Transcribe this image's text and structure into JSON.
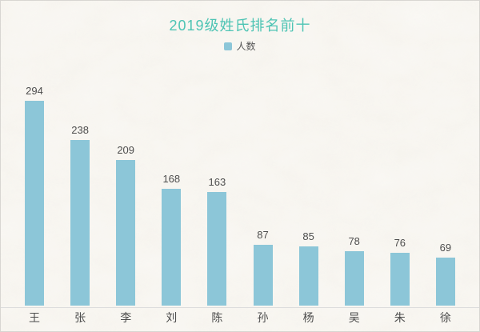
{
  "frame": {
    "background_color": "#f8f6f1",
    "border_color": "#d8d6d2"
  },
  "chart_data": {
    "type": "bar",
    "title": "2019级姓氏排名前十",
    "legend": [
      "人数"
    ],
    "legend_position": "top",
    "categories": [
      "王",
      "张",
      "李",
      "刘",
      "陈",
      "孙",
      "杨",
      "吴",
      "朱",
      "徐"
    ],
    "series": [
      {
        "name": "人数",
        "values": [
          294,
          238,
          209,
          168,
          163,
          87,
          85,
          78,
          76,
          69
        ]
      }
    ],
    "value_labels": true,
    "xlabel": "",
    "ylabel": "",
    "ylim": [
      0,
      300
    ],
    "grid": false,
    "y_axis_visible": false,
    "colors": {
      "bar": "#8cc6d8",
      "title": "#4ec4b4",
      "value_label": "#4d4d4d",
      "category_label": "#4d4d4d",
      "legend_text": "#555555",
      "axis_line": "#dcdcdc"
    }
  }
}
